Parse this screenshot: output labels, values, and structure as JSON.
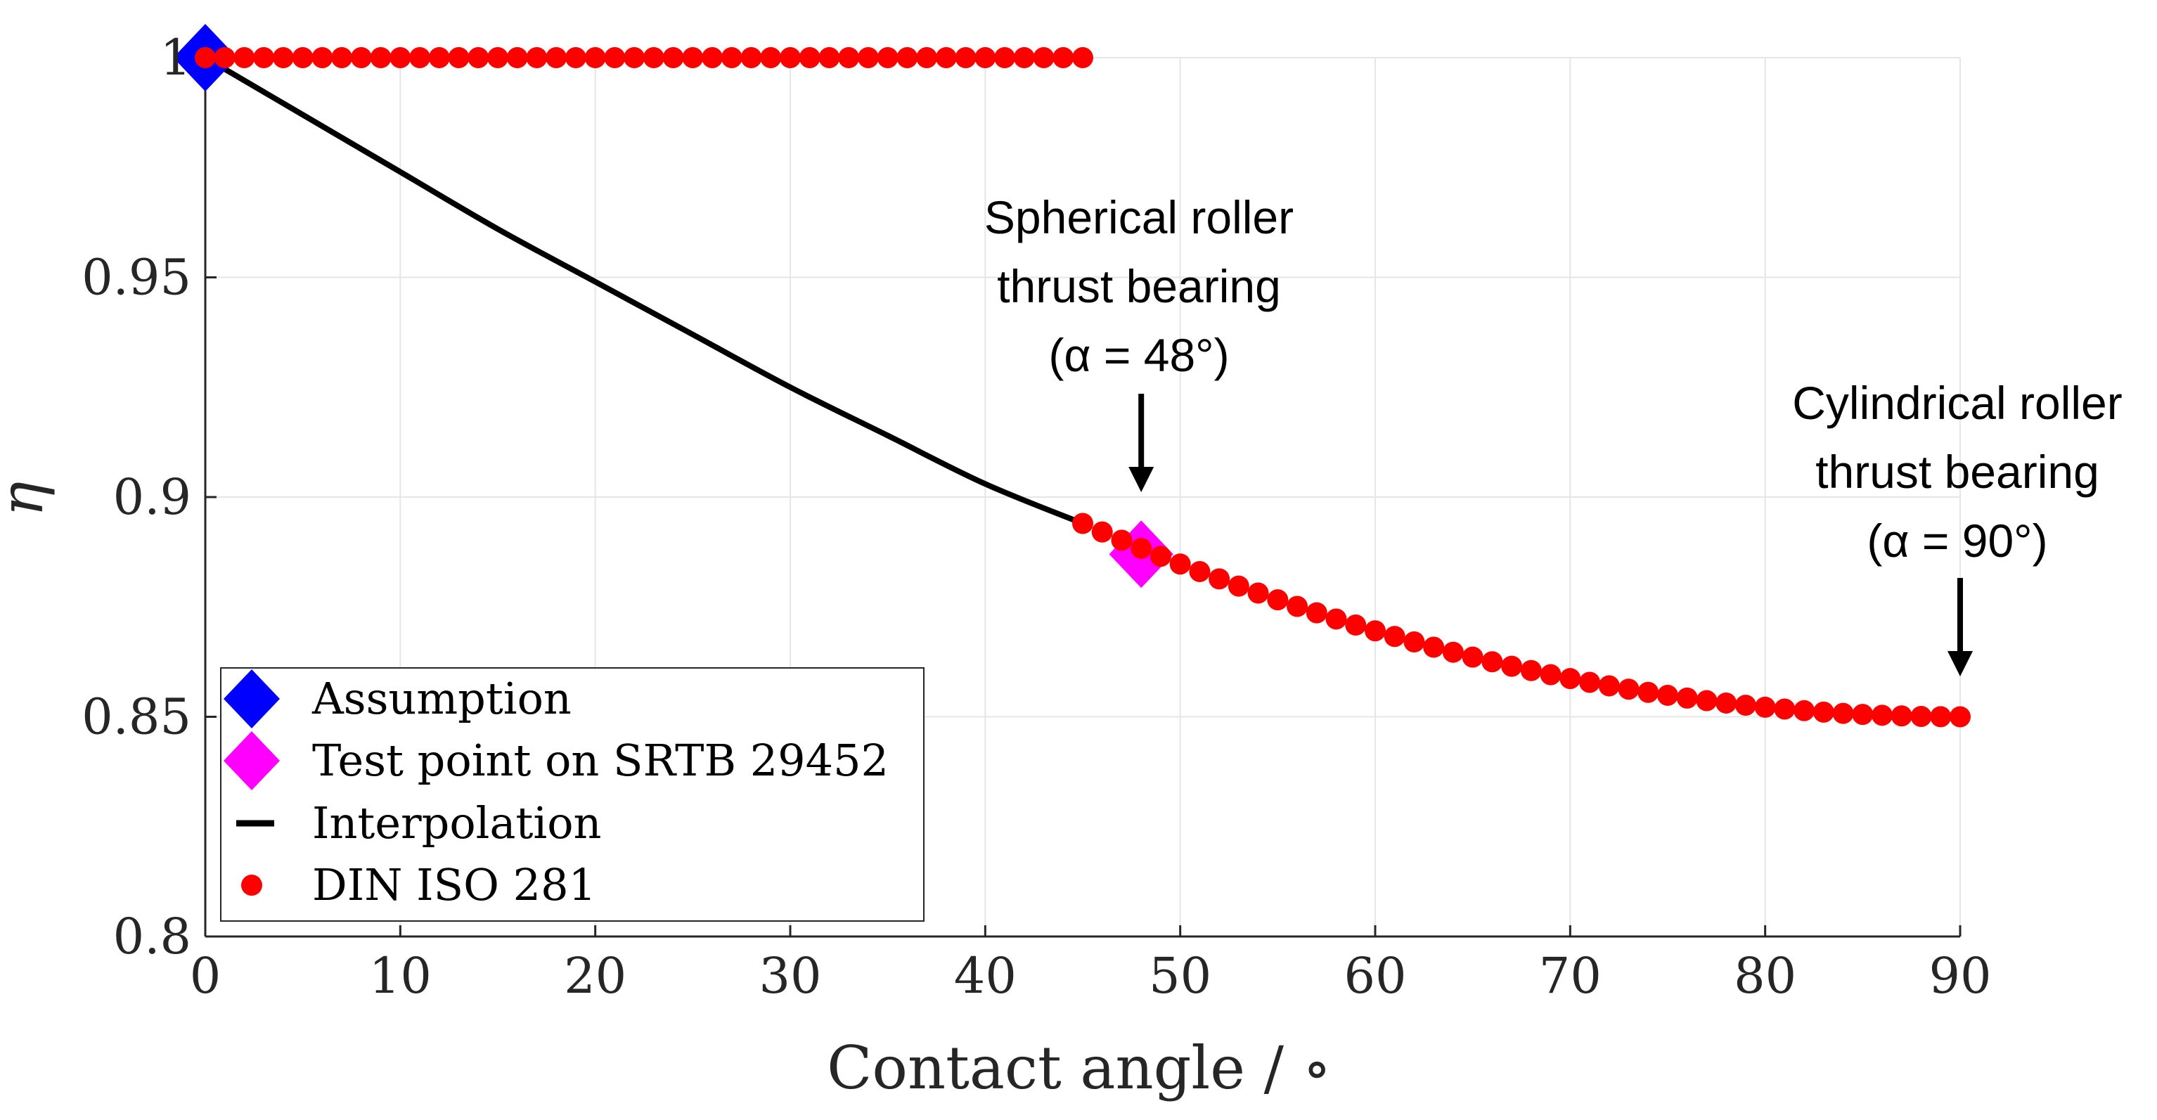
{
  "chart_data": {
    "type": "line",
    "xlabel": "Contact angle / ∘",
    "ylabel": "η",
    "xlim": [
      0,
      90
    ],
    "ylim": [
      0.8,
      1.0
    ],
    "xticks": [
      0,
      10,
      20,
      30,
      40,
      50,
      60,
      70,
      80,
      90
    ],
    "xtick_labels": [
      "0",
      "10",
      "20",
      "30",
      "40",
      "50",
      "60",
      "70",
      "80",
      "90"
    ],
    "yticks": [
      0.8,
      0.85,
      0.9,
      0.95,
      1.0
    ],
    "ytick_labels": [
      "0.8",
      "0.85",
      "0.9",
      "0.95",
      "1"
    ],
    "grid": true,
    "legend_position": "bottom-left",
    "series": [
      {
        "name": "Assumption",
        "kind": "diamond-marker",
        "color": "#0000ff",
        "points": [
          {
            "x": 0,
            "y": 1.0
          }
        ]
      },
      {
        "name": "Test point on SRTB 29452",
        "kind": "diamond-marker",
        "color": "#ff00ff",
        "points": [
          {
            "x": 48,
            "y": 0.887
          }
        ]
      },
      {
        "name": "Interpolation",
        "kind": "line",
        "color": "#000000",
        "x": [
          0,
          5,
          10,
          15,
          20,
          25,
          30,
          35,
          40,
          45
        ],
        "y": [
          1.0,
          0.987,
          0.974,
          0.961,
          0.949,
          0.937,
          0.925,
          0.914,
          0.903,
          0.894
        ]
      },
      {
        "name": "DIN ISO 281",
        "kind": "dot-marker",
        "color": "#ff0000",
        "upper_segment": {
          "x_start": 0,
          "x_end": 45,
          "step": 1,
          "y": 1.0
        },
        "lower_segment": {
          "x_start": 45,
          "x_end": 90,
          "step": 1,
          "y_start": 0.894,
          "y_end": 0.85
        }
      }
    ],
    "annotations": [
      {
        "lines": [
          "Spherical roller",
          "thrust bearing",
          "(α = 48°)"
        ],
        "target_x": 48,
        "target_y": 0.9
      },
      {
        "lines": [
          "Cylindrical roller",
          "thrust bearing",
          "(α = 90°)"
        ],
        "target_x": 90,
        "target_y": 0.859
      }
    ]
  },
  "colors": {
    "grid": "#e6e6e6",
    "axis": "#262626"
  }
}
